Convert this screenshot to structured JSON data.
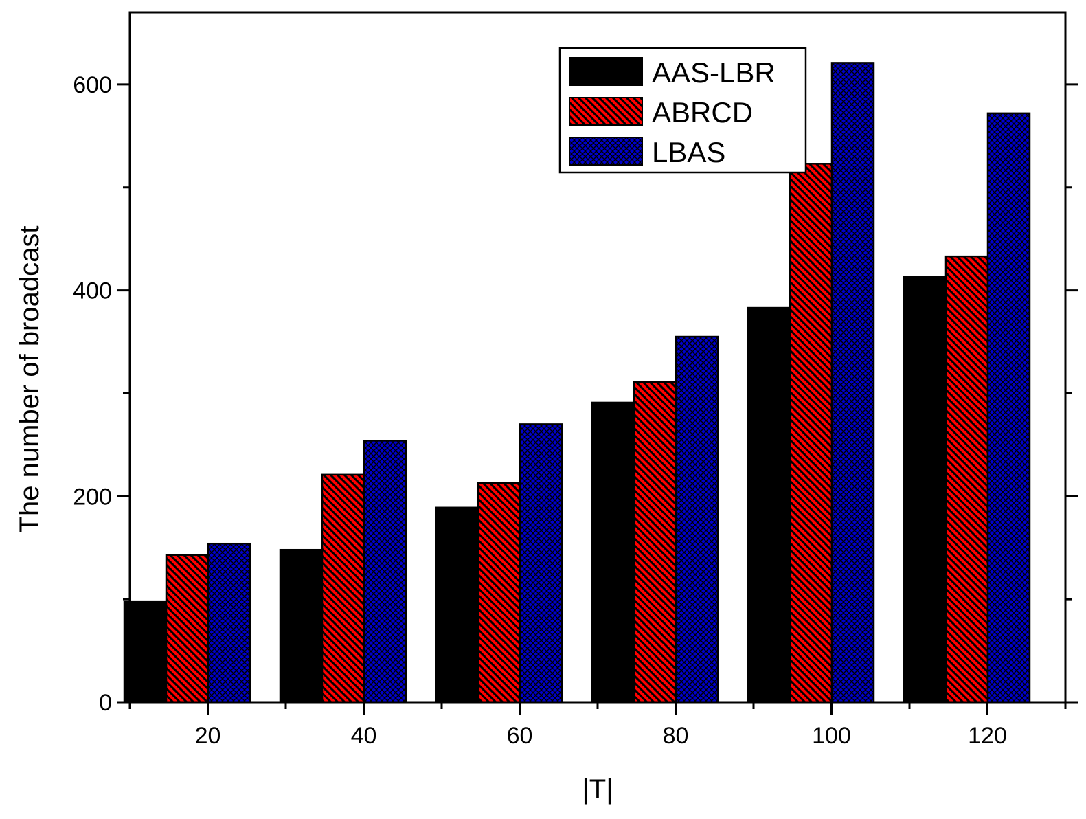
{
  "chart_data": {
    "type": "bar",
    "xlabel": "|T|",
    "ylabel": "The number of broadcast",
    "categories": [
      "20",
      "40",
      "60",
      "80",
      "100",
      "120"
    ],
    "x_ticks": [
      "20",
      "40",
      "60",
      "80",
      "100",
      "120"
    ],
    "y_ticks": [
      "0",
      "200",
      "400",
      "600"
    ],
    "ylim": [
      0,
      670
    ],
    "grid": false,
    "legend_position": "top-right",
    "series": [
      {
        "name": "AAS-LBR",
        "values": [
          98,
          148,
          189,
          291,
          383,
          413
        ],
        "color": "#000000",
        "pattern": "solid"
      },
      {
        "name": "ABRCD",
        "values": [
          143,
          221,
          213,
          311,
          523,
          433
        ],
        "color": "#ff0000",
        "pattern": "diagonal-hatch"
      },
      {
        "name": "LBAS",
        "values": [
          154,
          254,
          270,
          355,
          621,
          572
        ],
        "color": "#0000cc",
        "pattern": "crosshatch"
      }
    ]
  }
}
